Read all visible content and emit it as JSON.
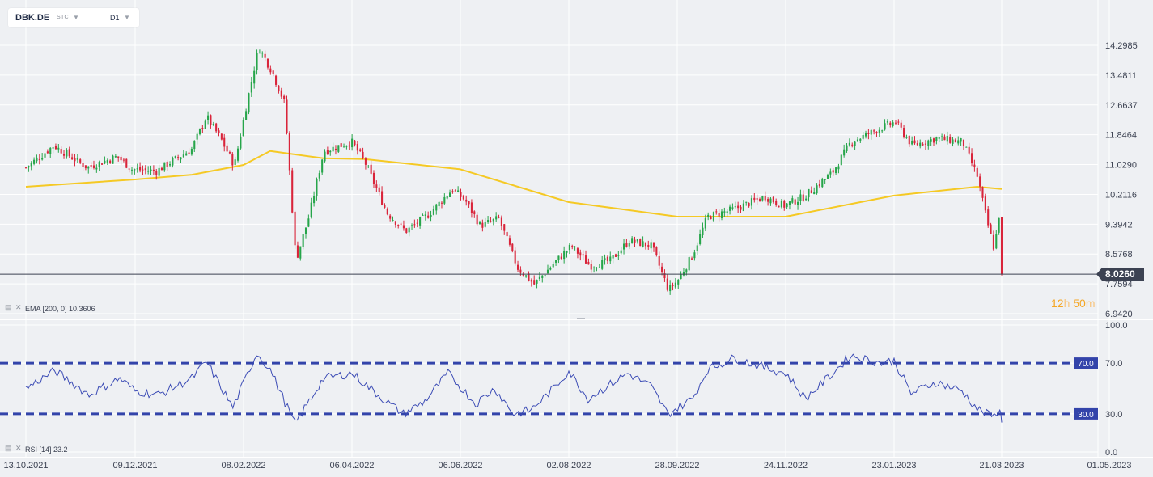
{
  "toolbar": {
    "symbol": "DBK.DE",
    "instrument_type": "STC",
    "interval": "D1"
  },
  "indicators": {
    "ema_label": "EMA [200, 0] 10.3606",
    "rsi_label": "RSI [14] 23.2"
  },
  "countdown": {
    "hours": "12",
    "hours_unit": "h",
    "minutes": "50",
    "minutes_unit": "m"
  },
  "colors": {
    "up": "#26a54a",
    "down": "#d9243a",
    "ema": "#f5c924",
    "rsi": "#3b4bb5",
    "rsi_levels": "#3344aa",
    "price_tag": "#3c4252",
    "countdown": "#f5a623",
    "grid": "#ffffff",
    "background": "#eef0f3"
  },
  "chart_data": [
    {
      "type": "candlestick",
      "symbol": "DBK.DE",
      "interval": "D1",
      "x_tick_labels": [
        "13.10.2021",
        "09.12.2021",
        "08.02.2022",
        "06.04.2022",
        "06.06.2022",
        "02.08.2022",
        "28.09.2022",
        "24.11.2022",
        "23.01.2023",
        "21.03.2023",
        "01.05.2023"
      ],
      "y_tick_labels": [
        "14.2985",
        "13.4811",
        "12.6637",
        "11.8464",
        "11.0290",
        "10.2116",
        "9.3942",
        "8.5768",
        "7.7594",
        "6.9420"
      ],
      "ylim": [
        6.942,
        14.2985
      ],
      "last_price": "8.0260",
      "close_path": [
        {
          "date": "13.10.2021",
          "close": 10.95
        },
        {
          "date": "28.10.2021",
          "close": 11.55
        },
        {
          "date": "15.11.2021",
          "close": 10.95
        },
        {
          "date": "01.12.2021",
          "close": 11.25
        },
        {
          "date": "09.12.2021",
          "close": 10.9
        },
        {
          "date": "22.12.2021",
          "close": 10.85
        },
        {
          "date": "10.01.2022",
          "close": 11.45
        },
        {
          "date": "18.01.2022",
          "close": 12.35
        },
        {
          "date": "26.01.2022",
          "close": 11.7
        },
        {
          "date": "02.02.2022",
          "close": 11.0
        },
        {
          "date": "08.02.2022",
          "close": 12.55
        },
        {
          "date": "15.02.2022",
          "close": 14.25
        },
        {
          "date": "22.02.2022",
          "close": 13.6
        },
        {
          "date": "01.03.2022",
          "close": 12.7
        },
        {
          "date": "07.03.2022",
          "close": 8.4
        },
        {
          "date": "14.03.2022",
          "close": 9.6
        },
        {
          "date": "22.03.2022",
          "close": 11.4
        },
        {
          "date": "06.04.2022",
          "close": 11.65
        },
        {
          "date": "13.04.2022",
          "close": 11.1
        },
        {
          "date": "25.04.2022",
          "close": 9.7
        },
        {
          "date": "05.05.2022",
          "close": 9.2
        },
        {
          "date": "17.05.2022",
          "close": 9.65
        },
        {
          "date": "30.05.2022",
          "close": 10.35
        },
        {
          "date": "06.06.2022",
          "close": 10.05
        },
        {
          "date": "14.06.2022",
          "close": 9.35
        },
        {
          "date": "24.06.2022",
          "close": 9.55
        },
        {
          "date": "04.07.2022",
          "close": 8.2
        },
        {
          "date": "13.07.2022",
          "close": 7.75
        },
        {
          "date": "25.07.2022",
          "close": 8.4
        },
        {
          "date": "02.08.2022",
          "close": 8.8
        },
        {
          "date": "12.08.2022",
          "close": 8.25
        },
        {
          "date": "23.08.2022",
          "close": 8.4
        },
        {
          "date": "02.09.2022",
          "close": 8.95
        },
        {
          "date": "14.09.2022",
          "close": 8.8
        },
        {
          "date": "23.09.2022",
          "close": 7.6
        },
        {
          "date": "28.09.2022",
          "close": 7.85
        },
        {
          "date": "06.10.2022",
          "close": 8.55
        },
        {
          "date": "14.10.2022",
          "close": 9.6
        },
        {
          "date": "28.10.2022",
          "close": 9.8
        },
        {
          "date": "14.11.2022",
          "close": 10.15
        },
        {
          "date": "24.11.2022",
          "close": 9.9
        },
        {
          "date": "05.12.2022",
          "close": 10.15
        },
        {
          "date": "20.12.2022",
          "close": 10.8
        },
        {
          "date": "30.12.2022",
          "close": 11.65
        },
        {
          "date": "16.01.2023",
          "close": 12.05
        },
        {
          "date": "23.01.2023",
          "close": 12.2
        },
        {
          "date": "01.02.2023",
          "close": 11.55
        },
        {
          "date": "14.02.2023",
          "close": 11.75
        },
        {
          "date": "28.02.2023",
          "close": 11.65
        },
        {
          "date": "08.03.2023",
          "close": 10.7
        },
        {
          "date": "13.03.2023",
          "close": 9.5
        },
        {
          "date": "17.03.2023",
          "close": 8.7
        },
        {
          "date": "20.03.2023",
          "close": 9.8
        },
        {
          "date": "21.03.2023",
          "close": 8.03
        }
      ]
    },
    {
      "type": "line",
      "name": "EMA [200, 0]",
      "last_value": 10.3606,
      "points": [
        {
          "date": "13.10.2021",
          "value": 10.42
        },
        {
          "date": "09.12.2021",
          "value": 10.62
        },
        {
          "date": "10.01.2022",
          "value": 10.75
        },
        {
          "date": "08.02.2022",
          "value": 11.02
        },
        {
          "date": "22.02.2022",
          "value": 11.4
        },
        {
          "date": "22.03.2022",
          "value": 11.2
        },
        {
          "date": "13.04.2022",
          "value": 11.18
        },
        {
          "date": "06.06.2022",
          "value": 10.9
        },
        {
          "date": "02.08.2022",
          "value": 10.0
        },
        {
          "date": "28.09.2022",
          "value": 9.6
        },
        {
          "date": "24.11.2022",
          "value": 9.6
        },
        {
          "date": "23.01.2023",
          "value": 10.18
        },
        {
          "date": "08.03.2023",
          "value": 10.42
        },
        {
          "date": "21.03.2023",
          "value": 10.36
        }
      ]
    },
    {
      "type": "line",
      "name": "RSI [14]",
      "last_value": 23.2,
      "y_tick_labels": [
        "100.0",
        "70.0",
        "30.0",
        "0.0"
      ],
      "ylim": [
        0,
        100
      ],
      "levels": [
        70.0,
        30.0
      ],
      "level_labels": [
        "70.0",
        "30.0"
      ],
      "points": [
        {
          "date": "13.10.2021",
          "value": 50
        },
        {
          "date": "28.10.2021",
          "value": 64
        },
        {
          "date": "15.11.2021",
          "value": 45
        },
        {
          "date": "01.12.2021",
          "value": 58
        },
        {
          "date": "09.12.2021",
          "value": 48
        },
        {
          "date": "22.12.2021",
          "value": 45
        },
        {
          "date": "10.01.2022",
          "value": 58
        },
        {
          "date": "18.01.2022",
          "value": 71
        },
        {
          "date": "02.02.2022",
          "value": 35
        },
        {
          "date": "15.02.2022",
          "value": 78
        },
        {
          "date": "22.02.2022",
          "value": 65
        },
        {
          "date": "07.03.2022",
          "value": 22
        },
        {
          "date": "22.03.2022",
          "value": 58
        },
        {
          "date": "06.04.2022",
          "value": 62
        },
        {
          "date": "25.04.2022",
          "value": 40
        },
        {
          "date": "05.05.2022",
          "value": 30
        },
        {
          "date": "17.05.2022",
          "value": 40
        },
        {
          "date": "30.05.2022",
          "value": 62
        },
        {
          "date": "14.06.2022",
          "value": 38
        },
        {
          "date": "24.06.2022",
          "value": 50
        },
        {
          "date": "04.07.2022",
          "value": 30
        },
        {
          "date": "13.07.2022",
          "value": 33
        },
        {
          "date": "25.07.2022",
          "value": 50
        },
        {
          "date": "02.08.2022",
          "value": 64
        },
        {
          "date": "12.08.2022",
          "value": 42
        },
        {
          "date": "02.09.2022",
          "value": 62
        },
        {
          "date": "14.09.2022",
          "value": 52
        },
        {
          "date": "23.09.2022",
          "value": 30
        },
        {
          "date": "06.10.2022",
          "value": 42
        },
        {
          "date": "14.10.2022",
          "value": 65
        },
        {
          "date": "28.10.2022",
          "value": 74
        },
        {
          "date": "14.11.2022",
          "value": 66
        },
        {
          "date": "24.11.2022",
          "value": 62
        },
        {
          "date": "05.12.2022",
          "value": 42
        },
        {
          "date": "20.12.2022",
          "value": 62
        },
        {
          "date": "30.12.2022",
          "value": 76
        },
        {
          "date": "16.01.2023",
          "value": 70
        },
        {
          "date": "23.01.2023",
          "value": 72
        },
        {
          "date": "01.02.2023",
          "value": 46
        },
        {
          "date": "14.02.2023",
          "value": 55
        },
        {
          "date": "28.02.2023",
          "value": 48
        },
        {
          "date": "08.03.2023",
          "value": 34
        },
        {
          "date": "13.03.2023",
          "value": 30
        },
        {
          "date": "17.03.2023",
          "value": 28
        },
        {
          "date": "20.03.2023",
          "value": 35
        },
        {
          "date": "21.03.2023",
          "value": 23.2
        }
      ]
    }
  ]
}
